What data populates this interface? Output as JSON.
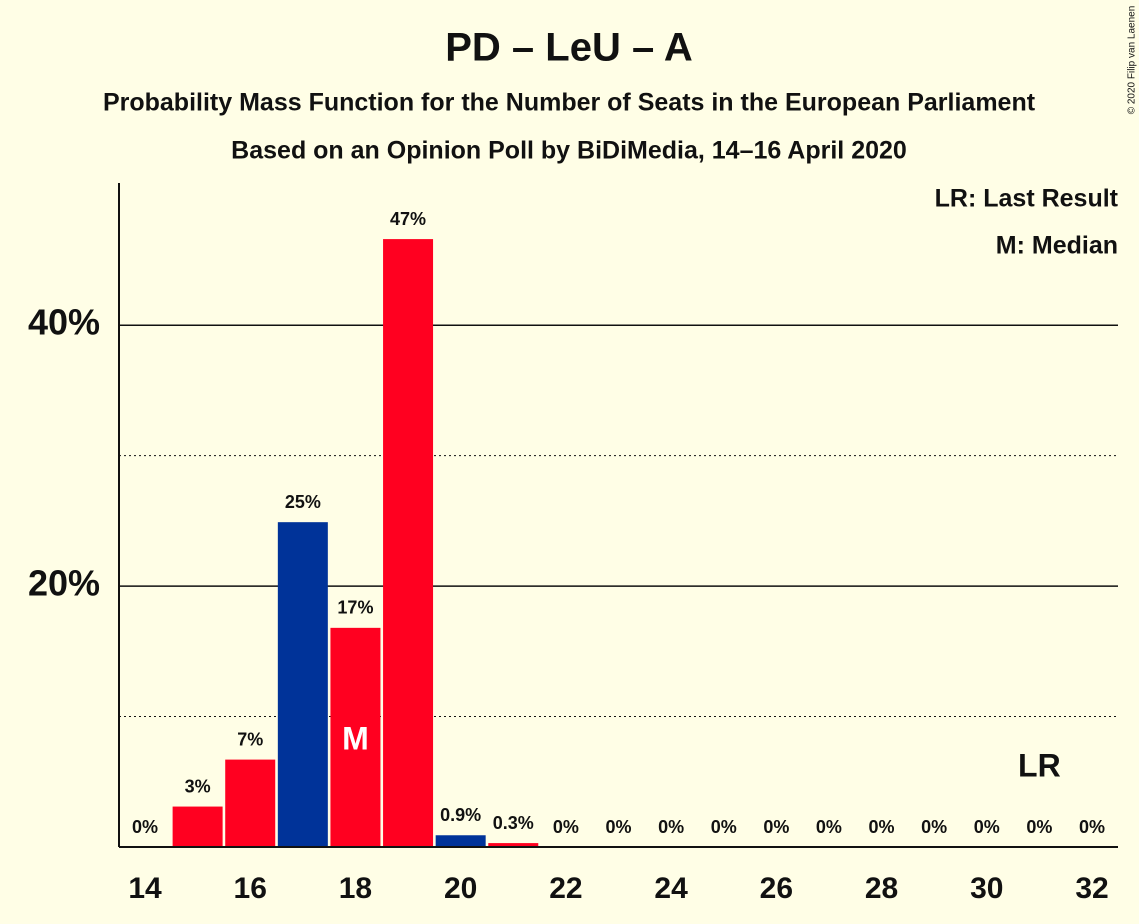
{
  "chart_data": {
    "type": "bar",
    "title": "PD – LeU – A",
    "subtitle": "Probability Mass Function for the Number of Seats in the European Parliament",
    "subtitle2": "Based on an Opinion Poll by BiDiMedia, 14–16 April 2020",
    "copyright": "© 2020 Filip van Laenen",
    "legend": [
      "LR: Last Result",
      "M: Median"
    ],
    "x": [
      14,
      15,
      16,
      17,
      18,
      19,
      20,
      21,
      22,
      23,
      24,
      25,
      26,
      27,
      28,
      29,
      30,
      31,
      32
    ],
    "values": [
      0,
      3.1,
      6.7,
      24.9,
      16.8,
      46.6,
      0.9,
      0.3,
      0,
      0,
      0,
      0,
      0,
      0,
      0,
      0,
      0,
      0,
      0
    ],
    "value_labels": [
      "0%",
      "3%",
      "7%",
      "25%",
      "17%",
      "47%",
      "0.9%",
      "0.3%",
      "0%",
      "0%",
      "0%",
      "0%",
      "0%",
      "0%",
      "0%",
      "0%",
      "0%",
      "0%",
      "0%"
    ],
    "colors": [
      "#ff0020",
      "#ff0020",
      "#ff0020",
      "#003399",
      "#ff0020",
      "#ff0020",
      "#003399",
      "#ff0020",
      "#ff0020",
      "#ff0020",
      "#ff0020",
      "#ff0020",
      "#ff0020",
      "#ff0020",
      "#ff0020",
      "#ff0020",
      "#ff0020",
      "#ff0020",
      "#ff0020"
    ],
    "markers": [
      {
        "x": 18,
        "label": "M"
      },
      {
        "x": 31,
        "label": "LR"
      }
    ],
    "xlim": [
      13.5,
      32.5
    ],
    "xticks": [
      14,
      16,
      18,
      20,
      22,
      24,
      26,
      28,
      30,
      32
    ],
    "ylim": [
      0,
      50.9
    ],
    "yticks": [
      {
        "value": 20,
        "label": "20%"
      },
      {
        "value": 40,
        "label": "40%"
      }
    ],
    "minor_yticks": [
      10,
      30
    ],
    "grid": true
  }
}
